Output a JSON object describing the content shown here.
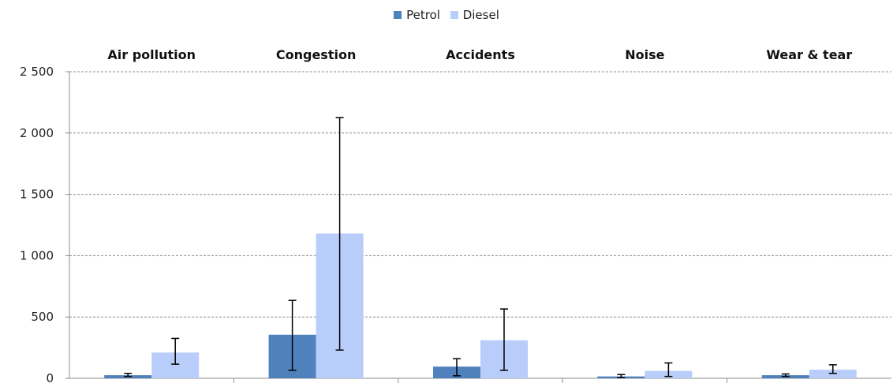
{
  "chart_data": {
    "type": "bar",
    "categories": [
      "Air pollution",
      "Congestion",
      "Accidents",
      "Noise",
      "Wear & tear"
    ],
    "series": [
      {
        "name": "Petrol",
        "color": "#4f81bd",
        "values": [
          25,
          355,
          95,
          15,
          25
        ],
        "error_low": [
          15,
          65,
          20,
          5,
          15
        ],
        "error_high": [
          40,
          635,
          160,
          30,
          35
        ]
      },
      {
        "name": "Diesel",
        "color": "#b9cdfa",
        "values": [
          210,
          1180,
          310,
          60,
          70
        ],
        "error_low": [
          115,
          230,
          65,
          15,
          40
        ],
        "error_high": [
          325,
          2125,
          565,
          125,
          110
        ]
      }
    ],
    "ylim": [
      0,
      2500
    ],
    "yticks": [
      0,
      500,
      1000,
      1500,
      2000,
      2500
    ],
    "ytick_labels": [
      "0",
      "500",
      "1 000",
      "1 500",
      "2 000",
      "2 500"
    ],
    "grid": true,
    "legend_position": "top-center",
    "xlabel": "",
    "ylabel": ""
  }
}
